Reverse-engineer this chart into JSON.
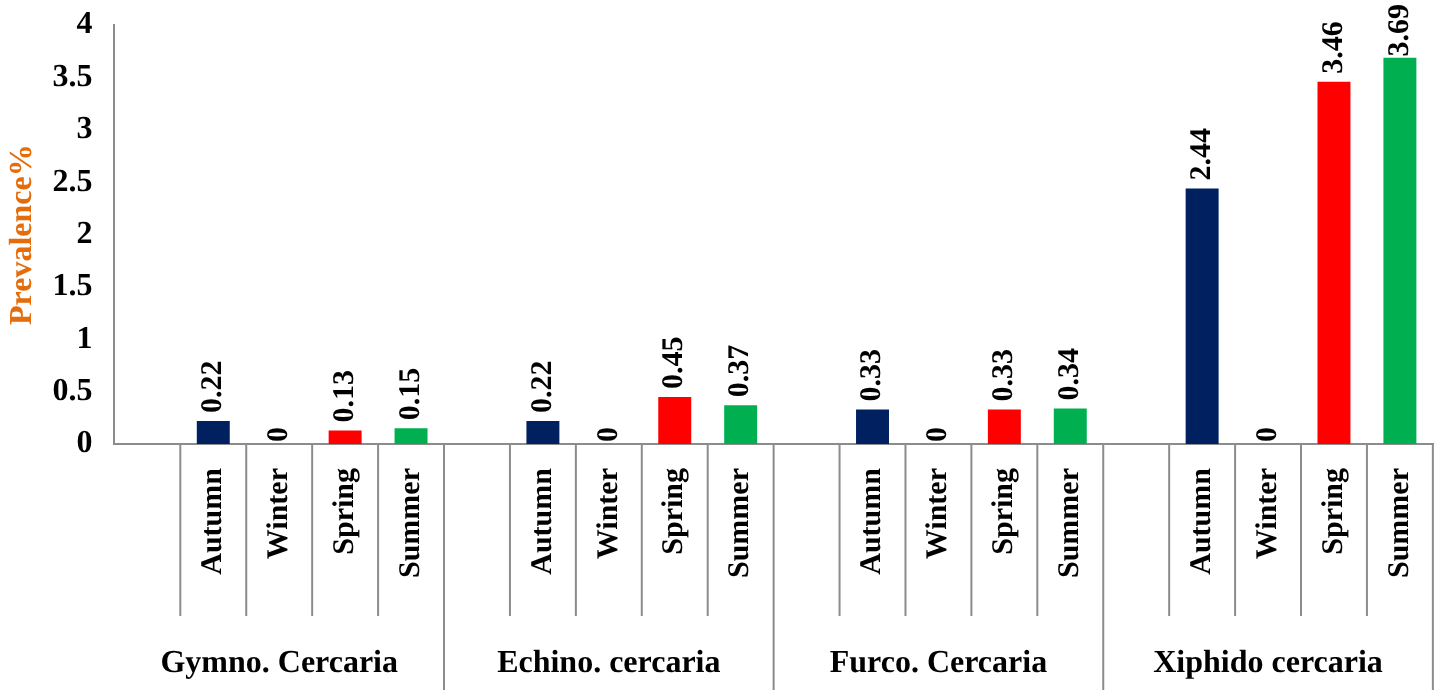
{
  "chart_data": {
    "type": "bar",
    "ylabel": "Prevalence%",
    "categories": [
      null,
      "Autumn",
      "Winter",
      "Spring",
      "Summer",
      null,
      "Autumn",
      "Winter",
      "Spring",
      "Summer",
      null,
      "Autumn",
      "Winter",
      "Spring",
      "Summer",
      null,
      "Autumn",
      "Winter",
      "Spring",
      "Summer"
    ],
    "values": [
      null,
      0.22,
      0,
      0.13,
      0.15,
      null,
      0.22,
      0,
      0.45,
      0.37,
      null,
      0.33,
      0,
      0.33,
      0.34,
      null,
      2.44,
      0,
      3.46,
      3.69
    ],
    "colors": [
      null,
      "#002060",
      null,
      "#ff0000",
      "#00b050",
      null,
      "#002060",
      null,
      "#ff0000",
      "#00b050",
      null,
      "#002060",
      null,
      "#ff0000",
      "#00b050",
      null,
      "#002060",
      null,
      "#ff0000",
      "#00b050"
    ],
    "annotations": [
      "Gymno. Cercaria",
      "Echino. cercaria",
      "Furco. Cercaria",
      "Xiphido cercaria"
    ],
    "ylim": [
      0,
      4
    ],
    "yticks": [
      0,
      0.5,
      1,
      1.5,
      2,
      2.5,
      3,
      3.5,
      4
    ],
    "grid": false,
    "legend": false,
    "data_labels": true
  }
}
